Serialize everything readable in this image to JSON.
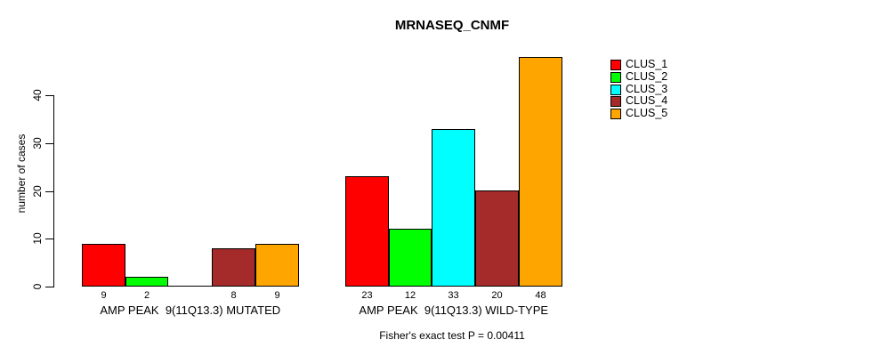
{
  "title": "MRNASEQ_CNMF",
  "footnote": "Fisher's exact test P = 0.00411",
  "y_axis": {
    "label": "number of cases",
    "ticks": [
      0,
      10,
      20,
      30,
      40
    ]
  },
  "chart_data": {
    "type": "bar",
    "title": "MRNASEQ_CNMF",
    "xlabel": "",
    "ylabel": "number of cases",
    "ylim": [
      0,
      48
    ],
    "yticks": [
      0,
      10,
      20,
      30,
      40
    ],
    "grid": false,
    "legend_position": "right",
    "categories": [
      "AMP PEAK  9(11Q13.3) MUTATED",
      "AMP PEAK  9(11Q13.3) WILD-TYPE"
    ],
    "series": [
      {
        "name": "CLUS_1",
        "color": "#FF0000",
        "values": [
          9,
          23
        ]
      },
      {
        "name": "CLUS_2",
        "color": "#00FF00",
        "values": [
          2,
          12
        ]
      },
      {
        "name": "CLUS_3",
        "color": "#00FFFF",
        "values": [
          0,
          33
        ]
      },
      {
        "name": "CLUS_4",
        "color": "#A52A2A",
        "values": [
          8,
          20
        ]
      },
      {
        "name": "CLUS_5",
        "color": "#FFA500",
        "values": [
          9,
          48
        ]
      }
    ],
    "bar_value_labels_shown": true,
    "zero_value_label_hidden": true,
    "annotation": "Fisher's exact test P = 0.00411"
  }
}
